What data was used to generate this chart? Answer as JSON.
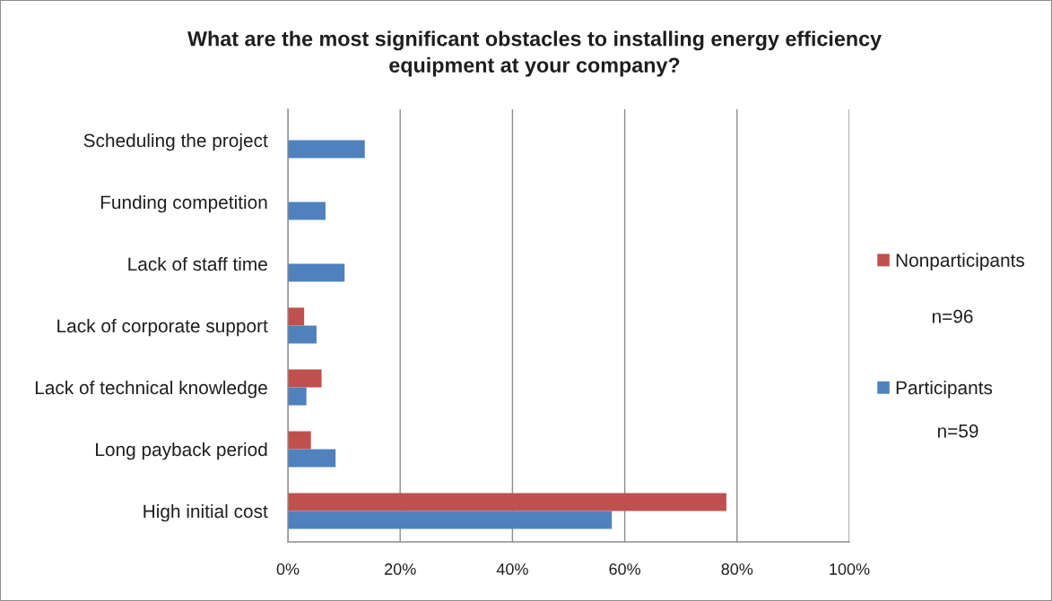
{
  "chart_data": {
    "type": "bar",
    "orientation": "horizontal",
    "title": "What are the most significant obstacles to installing energy efficiency\nequipment at your company?",
    "categories": [
      "Scheduling the project",
      "Funding competition",
      "Lack of staff time",
      "Lack of corporate support",
      "Lack of technical knowledge",
      "Long payback period",
      "High initial cost"
    ],
    "series": [
      {
        "name": "Nonparticipants",
        "color": "#c0504d",
        "values": [
          null,
          null,
          null,
          2.9,
          6.0,
          4.1,
          78.1
        ]
      },
      {
        "name": "Participants",
        "color": "#4f81bd",
        "values": [
          13.7,
          6.7,
          10.1,
          5.1,
          3.3,
          8.5,
          57.7
        ]
      }
    ],
    "xlim": [
      0,
      100
    ],
    "xticks": [
      {
        "value": 0,
        "label": "0%"
      },
      {
        "value": 20,
        "label": "20%"
      },
      {
        "value": 40,
        "label": "40%"
      },
      {
        "value": 60,
        "label": "60%"
      },
      {
        "value": 80,
        "label": "80%"
      },
      {
        "value": 100,
        "label": "100%"
      }
    ],
    "grid": "x",
    "legend": "right",
    "annotations": [
      "n=96",
      "n=59"
    ]
  }
}
